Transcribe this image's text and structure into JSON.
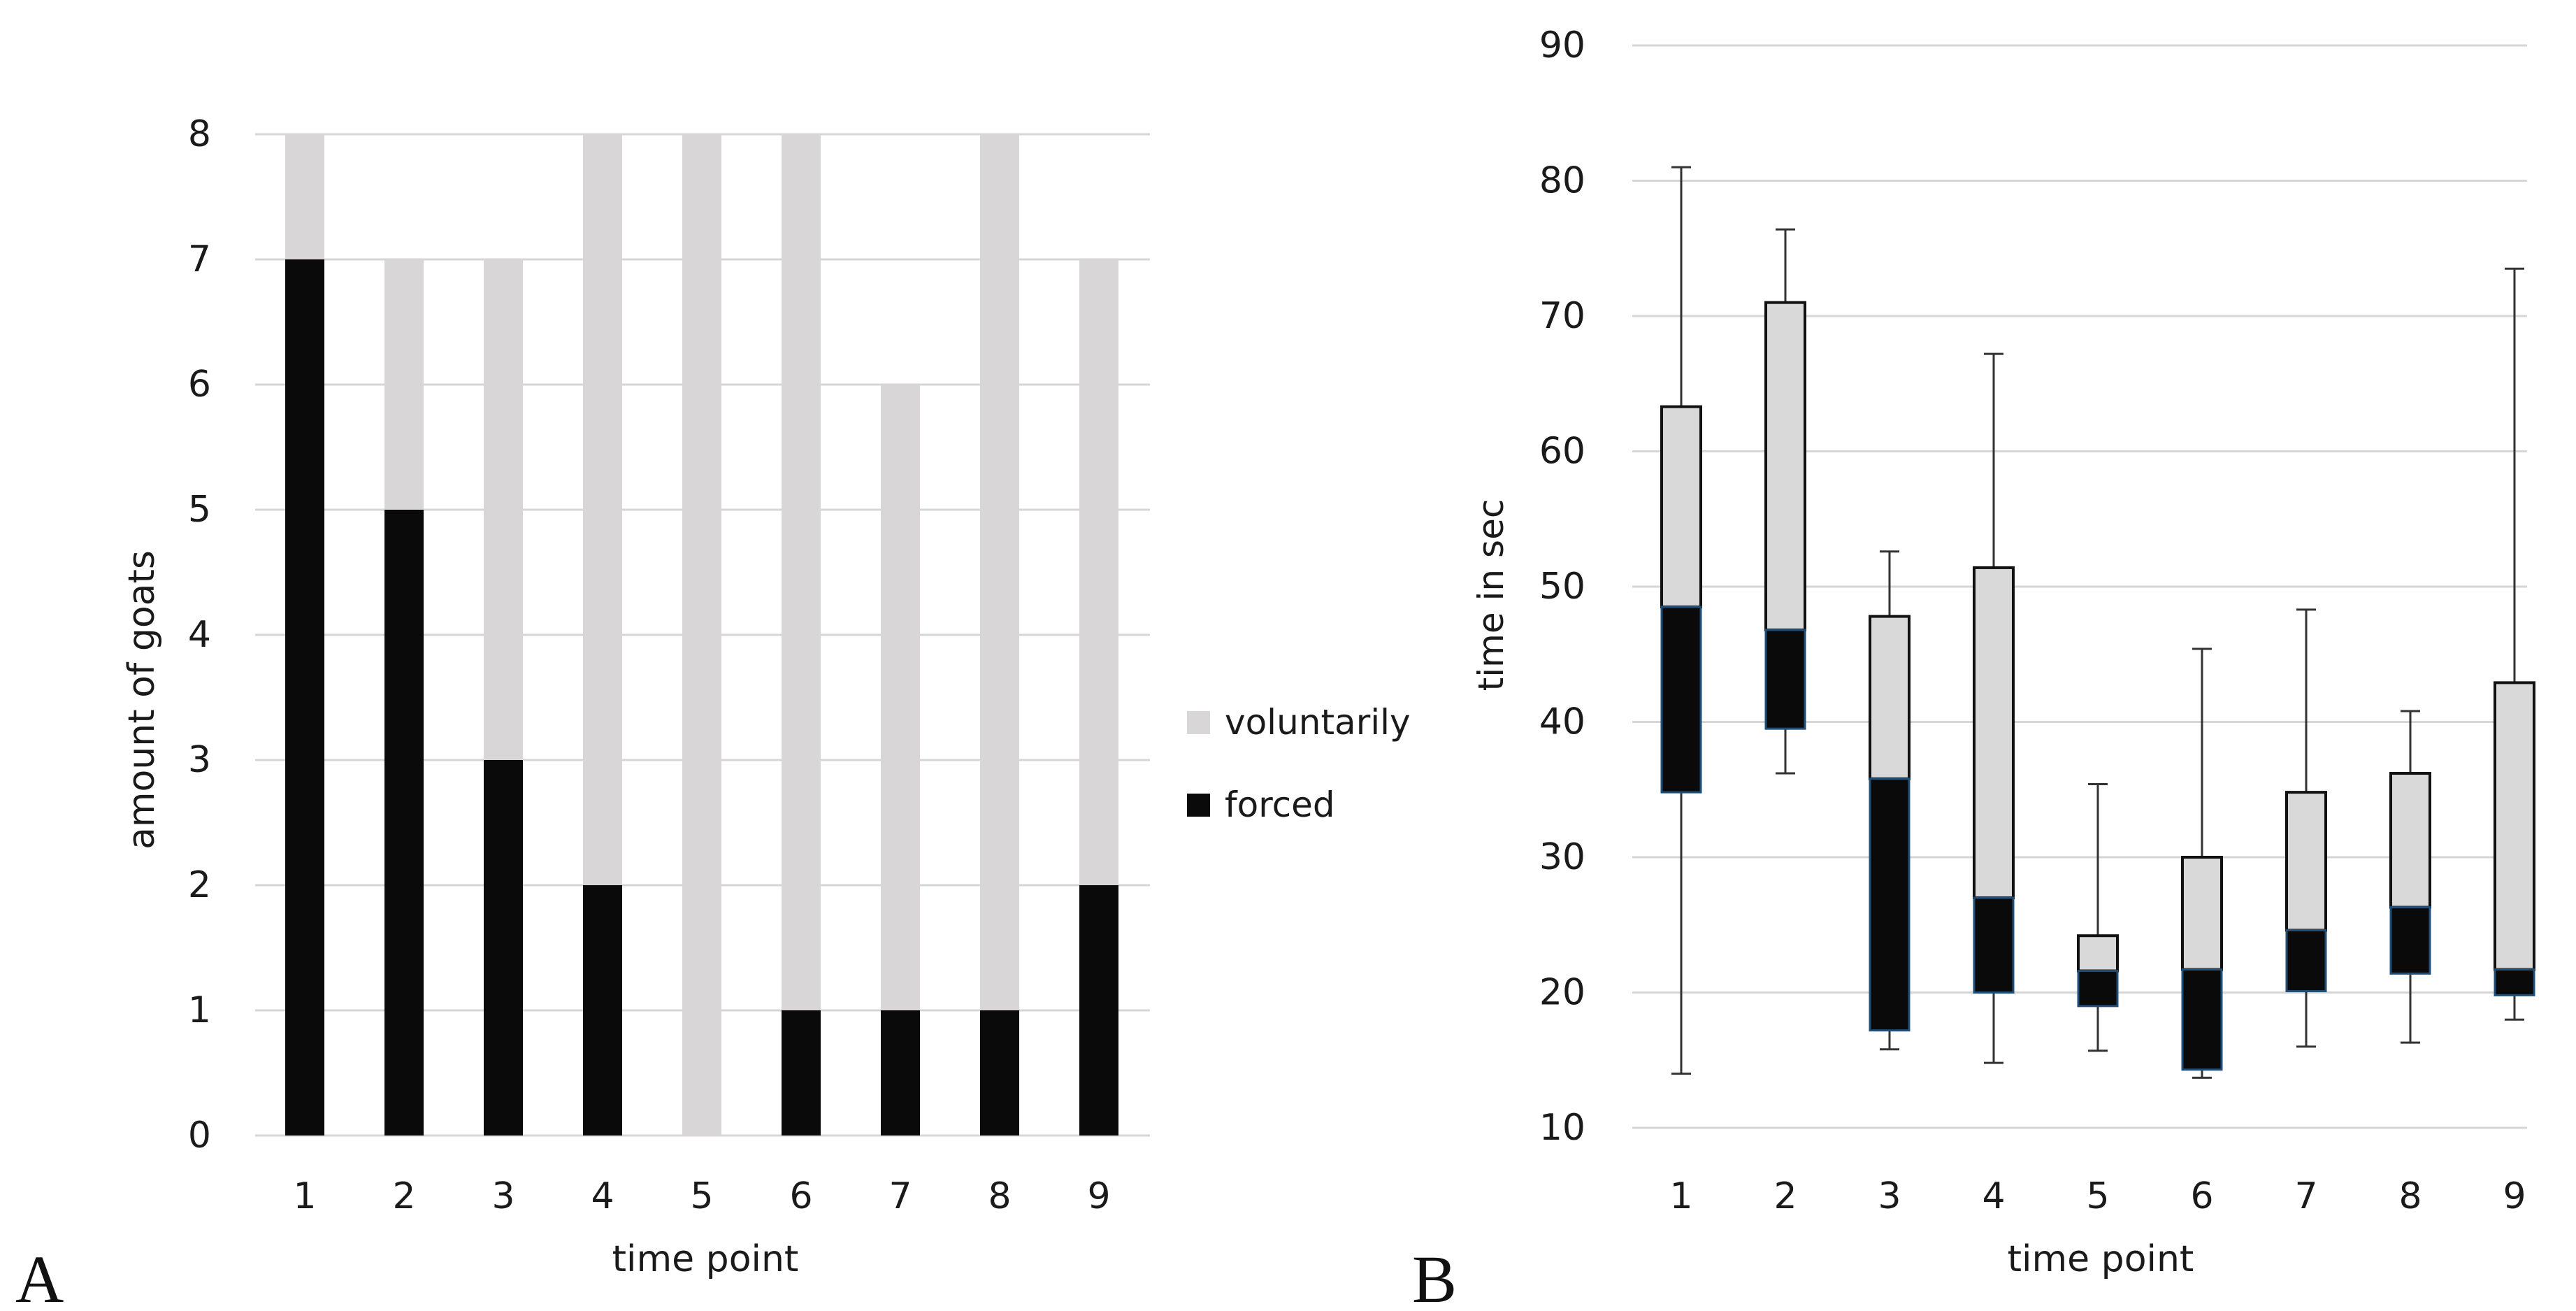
{
  "panels": {
    "a": {
      "letter": "A"
    },
    "b": {
      "letter": "B"
    }
  },
  "chart_data": [
    {
      "id": "panel-a",
      "type": "bar",
      "stacked": true,
      "title": "",
      "xlabel": "time point",
      "ylabel": "amount of goats",
      "categories": [
        "1",
        "2",
        "3",
        "4",
        "5",
        "6",
        "7",
        "8",
        "9"
      ],
      "series": [
        {
          "name": "forced",
          "values": [
            7,
            5,
            3,
            2,
            0,
            1,
            1,
            1,
            2
          ],
          "color": "#0a0a0a"
        },
        {
          "name": "voluntarily",
          "values": [
            1,
            2,
            4,
            6,
            8,
            7,
            5,
            7,
            5
          ],
          "color": "#d9d6d7"
        }
      ],
      "ylim": [
        0,
        8
      ],
      "yticks": [
        0,
        1,
        2,
        3,
        4,
        5,
        6,
        7,
        8
      ],
      "grid": true,
      "legend": {
        "position": "right",
        "entries": [
          {
            "label": "voluntarily",
            "color": "#d9d6d7"
          },
          {
            "label": "forced",
            "color": "#0a0a0a"
          }
        ]
      }
    },
    {
      "id": "panel-b",
      "type": "box",
      "title": "",
      "xlabel": "time point",
      "ylabel": "time in sec",
      "categories": [
        "1",
        "2",
        "3",
        "4",
        "5",
        "6",
        "7",
        "8",
        "9"
      ],
      "whisker_low": [
        14,
        36.2,
        15.8,
        14.8,
        15.7,
        13.7,
        16,
        16.3,
        18
      ],
      "q1": [
        34.8,
        39.5,
        17.2,
        20,
        19,
        14.3,
        20.1,
        21.4,
        19.8
      ],
      "median": [
        48.5,
        46.8,
        35.8,
        27,
        21.6,
        21.7,
        24.6,
        26.3,
        21.7
      ],
      "q3": [
        63.3,
        71,
        47.8,
        51.4,
        24.2,
        30,
        34.8,
        36.2,
        42.9
      ],
      "whisker_high": [
        81,
        76.4,
        52.6,
        67.2,
        35.4,
        45.4,
        48.3,
        40.8,
        73.5
      ],
      "lower_box_color": "#0a0a0a",
      "upper_box_color": "#d9d9d9",
      "ylim": [
        10,
        90
      ],
      "yticks": [
        10,
        20,
        30,
        40,
        50,
        60,
        70,
        80,
        90
      ],
      "grid": true
    }
  ]
}
